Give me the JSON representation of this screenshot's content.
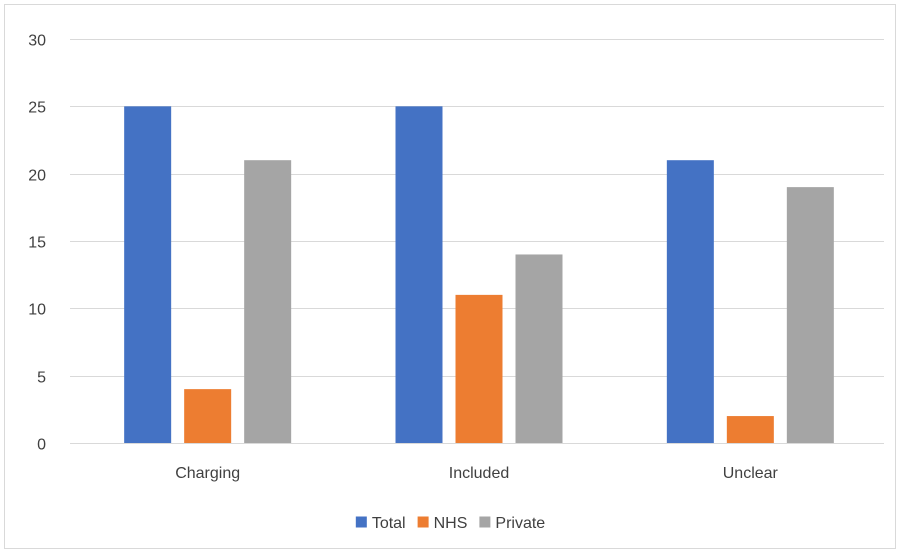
{
  "chart_data": {
    "type": "bar",
    "categories": [
      "Charging",
      "Included",
      "Unclear"
    ],
    "series": [
      {
        "name": "Total",
        "values": [
          25,
          25,
          21
        ],
        "color": "#4472C4"
      },
      {
        "name": "NHS",
        "values": [
          4,
          11,
          2
        ],
        "color": "#ED7D31"
      },
      {
        "name": "Private",
        "values": [
          21,
          14,
          19
        ],
        "color": "#A5A5A5"
      }
    ],
    "ylim": [
      0,
      30
    ],
    "yticks": [
      0,
      5,
      10,
      15,
      20,
      25,
      30
    ],
    "grid": true,
    "legend": "bottom"
  }
}
